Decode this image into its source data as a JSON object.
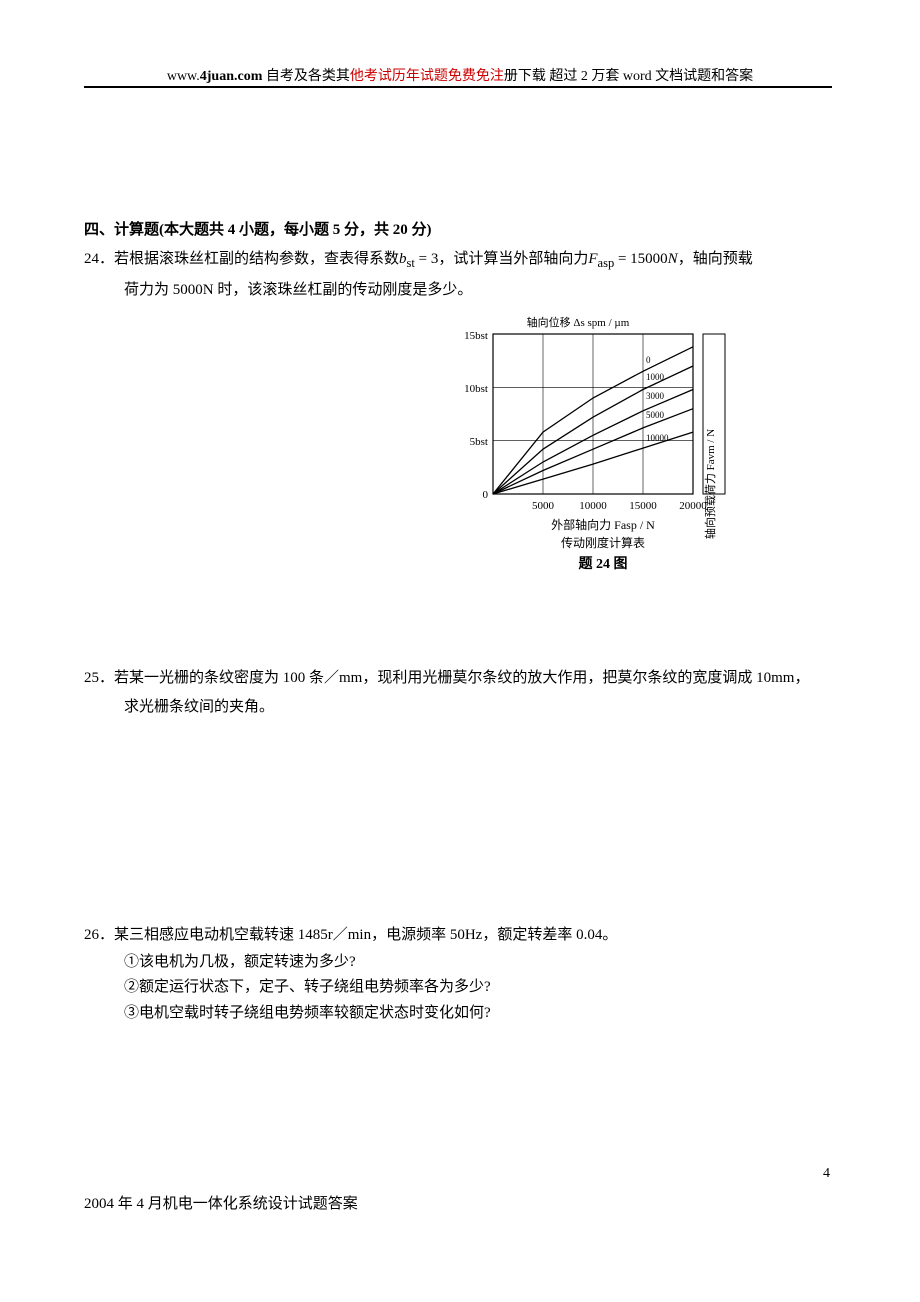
{
  "header": {
    "prefix": "www.",
    "domain_bold": "4juan.com",
    "text1": " 自考及各类其",
    "text_red": "他考试历年试题免费免注",
    "text2": "册下载 超过 2 万套 word 文档试题和答案"
  },
  "section_title": "四、计算题(本大题共 4 小题，每小题 5 分，共 20 分)",
  "q24": {
    "label": "24．",
    "text1": "若根据滚珠丝杠副的结构参数，查表得系数",
    "formula1_var": "b",
    "formula1_sub": "st",
    "formula1_eq": " = 3",
    "text2": "，试计算当外部轴向力",
    "formula2_var": "F",
    "formula2_sub": "asp",
    "formula2_eq": " = 15000",
    "formula2_unit": "N",
    "text3": "，轴向预载",
    "text4": "荷力为 5000N 时，该滚珠丝杠副的传动刚度是多少。"
  },
  "chart": {
    "type": "line",
    "top_label": "轴向位移 Δs spm / µm",
    "y_ticks": [
      "15b_st",
      "10b_st",
      "5b_st",
      "0"
    ],
    "x_ticks": [
      "5000",
      "10000",
      "15000",
      "20000"
    ],
    "x_label": "外部轴向力 F_asp / N",
    "subtitle": "传动刚度计算表",
    "caption": "题 24 图",
    "right_label": "轴向预载荷力 F_avm / N",
    "curve_labels": [
      "0",
      "1000",
      "3000",
      "5000",
      "10000"
    ],
    "background_color": "#ffffff",
    "grid_color": "#000000",
    "line_color": "#000000",
    "font_size_axis": 11,
    "font_size_caption": 14,
    "xlim": [
      0,
      20000
    ],
    "ylim": [
      0,
      15
    ],
    "curves": [
      {
        "label": "0",
        "points": [
          [
            0,
            0
          ],
          [
            5000,
            5.8
          ],
          [
            10000,
            9
          ],
          [
            15000,
            11.5
          ],
          [
            20000,
            13.8
          ]
        ]
      },
      {
        "label": "1000",
        "points": [
          [
            0,
            0
          ],
          [
            5000,
            4.2
          ],
          [
            10000,
            7.2
          ],
          [
            15000,
            9.8
          ],
          [
            20000,
            12.0
          ]
        ]
      },
      {
        "label": "3000",
        "points": [
          [
            0,
            0
          ],
          [
            5000,
            3.0
          ],
          [
            10000,
            5.5
          ],
          [
            15000,
            7.8
          ],
          [
            20000,
            9.8
          ]
        ]
      },
      {
        "label": "5000",
        "points": [
          [
            0,
            0
          ],
          [
            5000,
            2.2
          ],
          [
            10000,
            4.2
          ],
          [
            15000,
            6.2
          ],
          [
            20000,
            8.0
          ]
        ]
      },
      {
        "label": "10000",
        "points": [
          [
            0,
            0
          ],
          [
            5000,
            1.4
          ],
          [
            10000,
            2.8
          ],
          [
            15000,
            4.3
          ],
          [
            20000,
            5.8
          ]
        ]
      }
    ]
  },
  "q25": {
    "label": "25．",
    "text1": "若某一光栅的条纹密度为 100 条／mm，现利用光栅莫尔条纹的放大作用，把莫尔条纹的宽度调成 10mm，",
    "text2": "求光栅条纹间的夹角。"
  },
  "q26": {
    "label": "26．",
    "text1": "某三相感应电动机空载转速 1485r／min，电源频率 50Hz，额定转差率 0.04。",
    "sub1": "①该电机为几极，额定转速为多少?",
    "sub2": "②额定运行状态下，定子、转子绕组电势频率各为多少?",
    "sub3": "③电机空载时转子绕组电势频率较额定状态时变化如何?"
  },
  "answer_line": "2004 年 4 月机电一体化系统设计试题答案",
  "page_number": "4"
}
